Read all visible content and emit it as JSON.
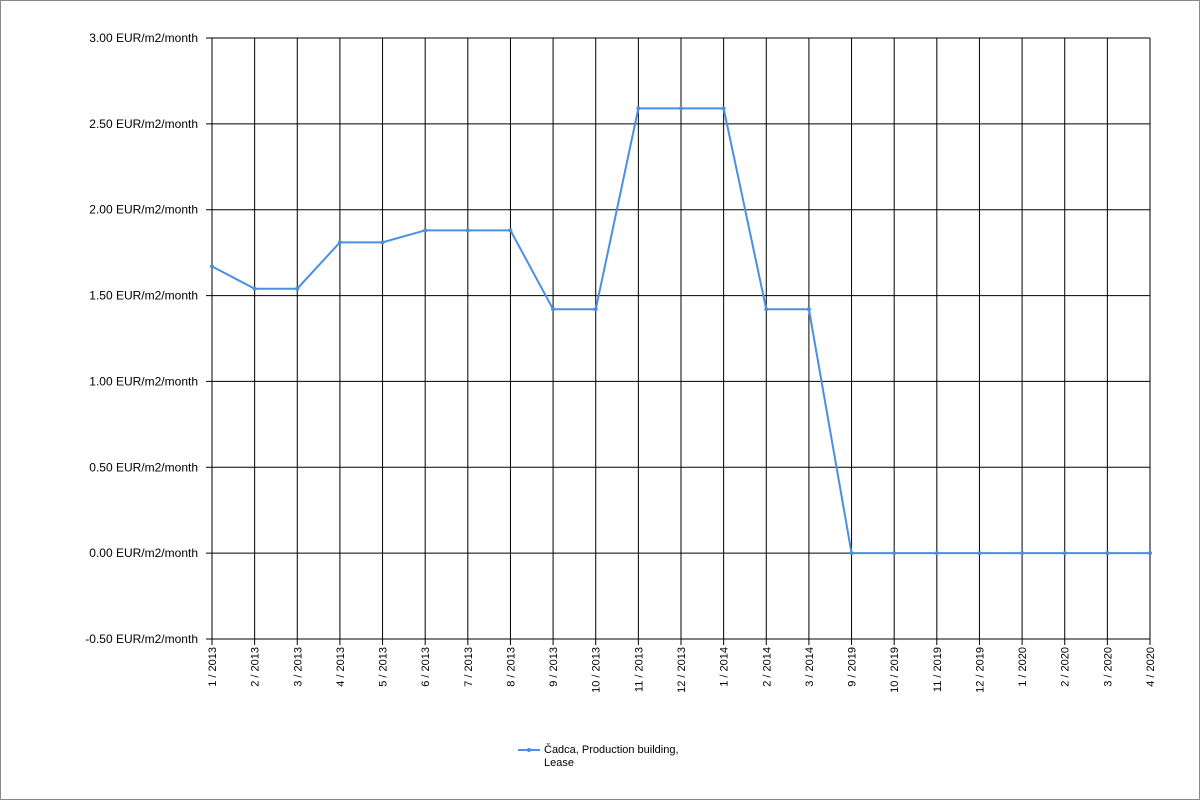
{
  "chart_data": {
    "type": "line",
    "categories": [
      "1 / 2013",
      "2 / 2013",
      "3 / 2013",
      "4 / 2013",
      "5 / 2013",
      "6 / 2013",
      "7 / 2013",
      "8 / 2013",
      "9 / 2013",
      "10 / 2013",
      "11 / 2013",
      "12 / 2013",
      "1 / 2014",
      "2 / 2014",
      "3 / 2014",
      "9 / 2019",
      "10 / 2019",
      "11 / 2019",
      "12 / 2019",
      "1 / 2020",
      "2 / 2020",
      "3 / 2020",
      "4 / 2020"
    ],
    "series": [
      {
        "name": "Čadca, Production building, Lease",
        "color": "#4a8fe3",
        "values": [
          1.67,
          1.54,
          1.54,
          1.81,
          1.81,
          1.88,
          1.88,
          1.88,
          1.42,
          1.42,
          2.59,
          2.59,
          2.59,
          1.42,
          1.42,
          0,
          0,
          0,
          0,
          0,
          0,
          0,
          0
        ]
      }
    ],
    "ylim": [
      -0.5,
      3
    ],
    "yticks": [
      {
        "value": -0.5,
        "label": "-0.50 EUR/m2/month"
      },
      {
        "value": 0,
        "label": "0.00 EUR/m2/month"
      },
      {
        "value": 0.5,
        "label": "0.50 EUR/m2/month"
      },
      {
        "value": 1,
        "label": "1.00 EUR/m2/month"
      },
      {
        "value": 1.5,
        "label": "1.50 EUR/m2/month"
      },
      {
        "value": 2,
        "label": "2.00 EUR/m2/month"
      },
      {
        "value": 2.5,
        "label": "2.50 EUR/m2/month"
      },
      {
        "value": 3,
        "label": "3.00 EUR/m2/month"
      }
    ],
    "grid": true,
    "legend": "bottom"
  }
}
